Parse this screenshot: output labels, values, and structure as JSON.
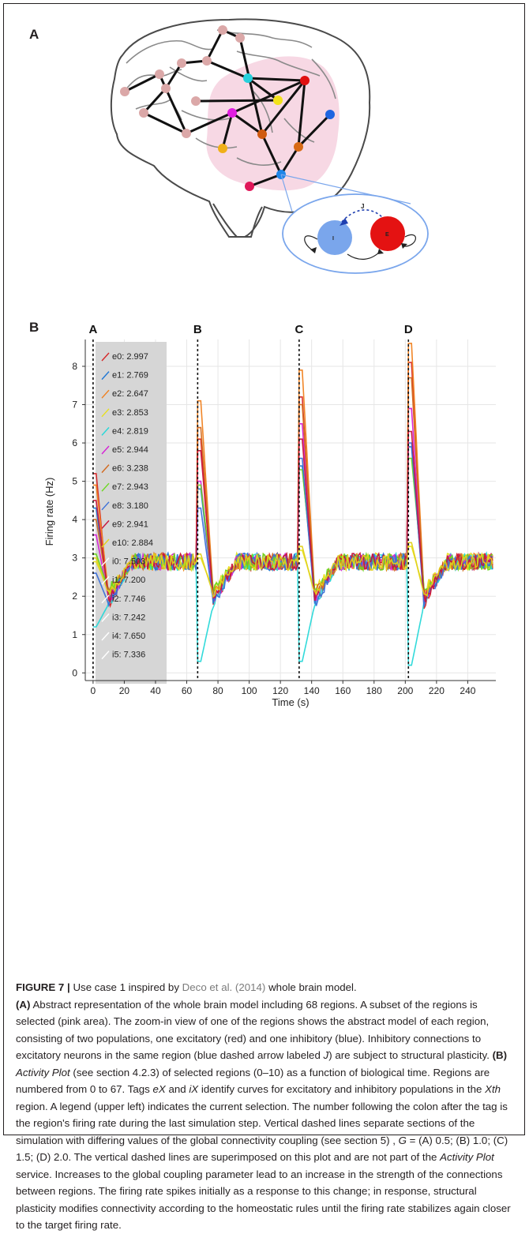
{
  "panels": {
    "a": "A",
    "b": "B"
  },
  "diagram": {
    "j_label": "J",
    "inhibitory_label": "I",
    "excitatory_label": "E",
    "colors": {
      "excitatory": "#e41212",
      "inhibitory": "#7aa6ec",
      "selection": "#f6d4e1",
      "outline": "#6d6d6d"
    }
  },
  "chart_data": {
    "type": "line",
    "xlabel": "Time (s)",
    "ylabel": "Firing rate (Hz)",
    "xlim": [
      -5,
      258
    ],
    "ylim": [
      -0.2,
      8.7
    ],
    "x_ticks": [
      0,
      20,
      40,
      60,
      80,
      100,
      120,
      140,
      160,
      180,
      200,
      220,
      240
    ],
    "y_ticks": [
      0,
      1,
      2,
      3,
      4,
      5,
      6,
      7,
      8
    ],
    "grid": true,
    "legend_position": "upper-left",
    "markers": [
      {
        "label": "A",
        "x": 0
      },
      {
        "label": "B",
        "x": 67
      },
      {
        "label": "C",
        "x": 132
      },
      {
        "label": "D",
        "x": 202
      }
    ],
    "series": [
      {
        "name": "e0: 2.997",
        "color": "#d62728",
        "peaks": [
          5.2,
          6.1,
          7.2,
          8.1
        ]
      },
      {
        "name": "e1: 2.769",
        "color": "#1f77d4",
        "peaks": [
          4.3,
          4.8,
          5.4,
          5.9
        ]
      },
      {
        "name": "e2: 2.647",
        "color": "#f07f1c",
        "peaks": [
          4.9,
          7.1,
          7.9,
          8.6
        ]
      },
      {
        "name": "e3: 2.853",
        "color": "#e8e01c",
        "peaks": [
          2.9,
          3.0,
          3.2,
          3.3
        ]
      },
      {
        "name": "e4: 2.819",
        "color": "#27d8d8",
        "peaks": [
          1.2,
          0.3,
          0.3,
          0.2
        ]
      },
      {
        "name": "e5: 2.944",
        "color": "#d620d6",
        "peaks": [
          3.6,
          5.0,
          6.5,
          6.9
        ]
      },
      {
        "name": "e6: 3.238",
        "color": "#d2691e",
        "peaks": [
          4.0,
          6.4,
          7.0,
          7.7
        ]
      },
      {
        "name": "e7: 2.943",
        "color": "#6ad81e",
        "peaks": [
          3.1,
          4.9,
          5.3,
          5.6
        ]
      },
      {
        "name": "e8: 3.180",
        "color": "#3a6fd8",
        "peaks": [
          2.6,
          4.3,
          5.6,
          6.0
        ]
      },
      {
        "name": "e9: 2.941",
        "color": "#c8143c",
        "peaks": [
          4.5,
          5.8,
          6.1,
          6.3
        ]
      },
      {
        "name": "e10: 2.884",
        "color": "#e0d21a",
        "peaks": [
          3.0,
          3.1,
          3.3,
          3.4
        ]
      },
      {
        "name": "i0: 7.503",
        "color": "#ffffff",
        "peaks": []
      },
      {
        "name": "i1: 7.200",
        "color": "#ffffff",
        "peaks": []
      },
      {
        "name": "i2: 7.746",
        "color": "#ffffff",
        "peaks": []
      },
      {
        "name": "i3: 7.242",
        "color": "#ffffff",
        "peaks": []
      },
      {
        "name": "i4: 7.650",
        "color": "#ffffff",
        "peaks": []
      },
      {
        "name": "i5: 7.336",
        "color": "#ffffff",
        "peaks": []
      }
    ]
  },
  "caption": {
    "figure_label": "FIGURE 7 |",
    "l1_a": "Use case 1 inspired by",
    "l1_ref": "Deco et al. (2014)",
    "l1_b": "whole brain model.",
    "a_label": "(A)",
    "a_text": "Abstract representation of the whole brain model including 68 regions. A subset of the regions is selected (pink area). The zoom-in view of one of the regions shows the abstract model of each region, consisting of two populations, one excitatory (red) and one inhibitory (blue). Inhibitory connections to excitatory neurons in the same region (blue dashed arrow labeled",
    "a_j": "J",
    "a_end": ") are subject to structural plasticity.",
    "b_label": "(B)",
    "b_ital": "Activity Plot",
    "b_text": "(see section 4.2.3) of selected regions (0–10) as a function of biological time. Regions are numbered from 0 to 67. Tags",
    "b_ex": "eX",
    "b_and": "and",
    "b_ix": "iX",
    "b_text2": "identify curves for excitatory and inhibitory populations in the",
    "b_xth": "Xth",
    "b_text3": "region. A legend (upper left) indicates the current selection. The number following the colon after the tag is the region's firing rate during the last simulation step. Vertical dashed lines separate sections of the simulation with differing values of the global connectivity coupling (see section 5) ,",
    "b_g": "G",
    "b_text4": "= (A) 0.5; (B) 1.0; (C) 1.5; (D) 2.0. The vertical dashed lines are superimposed on this plot and are not part of the",
    "b_ital2": "Activity Plot",
    "b_text5": "service. Increases to the global coupling parameter lead to an increase in the strength of the connections between regions. The firing rate spikes initially as a response to this change; in response, structural plasticity modifies connectivity according to the homeostatic rules until the firing rate stabilizes again closer to the target firing rate."
  }
}
